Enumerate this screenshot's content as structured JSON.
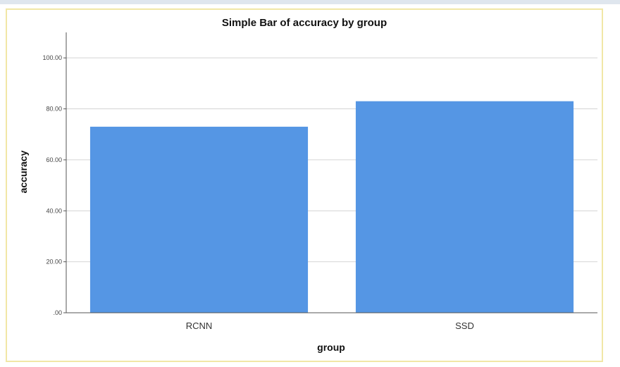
{
  "chart_data": {
    "type": "bar",
    "title": "Simple Bar of accuracy by group",
    "xlabel": "group",
    "ylabel": "accuracy",
    "categories": [
      "RCNN",
      "SSD"
    ],
    "values": [
      73,
      83
    ],
    "ylim": [
      0,
      110
    ],
    "yticks": [
      0,
      20,
      40,
      60,
      80,
      100
    ],
    "ytick_labels": [
      ".00",
      "20.00",
      "40.00",
      "60.00",
      "80.00",
      "100.00"
    ],
    "grid": true,
    "bar_color": "#5596e4"
  }
}
